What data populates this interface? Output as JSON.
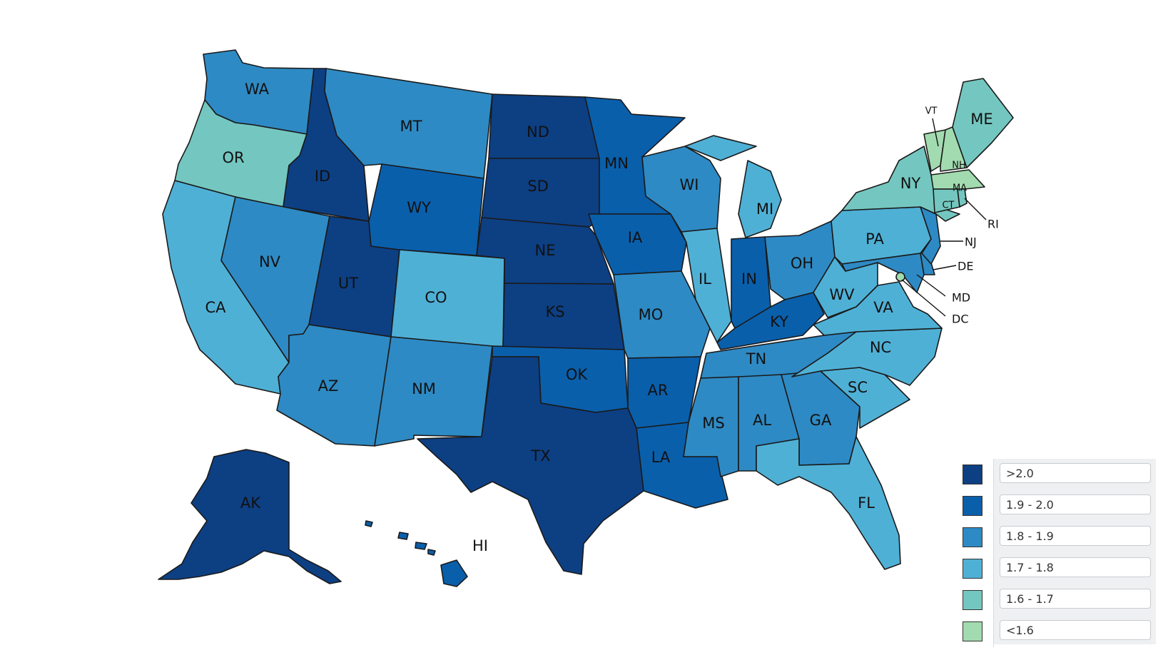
{
  "colors": {
    "c_gt20": "#0d3f83",
    "c_19_20": "#0a5fab",
    "c_18_19": "#2e8ac4",
    "c_17_18": "#4fb0d6",
    "c_16_17": "#74c7c0",
    "c_lt16": "#a2dbb0"
  },
  "legend": [
    {
      "label": ">2.0",
      "color": "#0d3f83"
    },
    {
      "label": "1.9 - 2.0",
      "color": "#0a5fab"
    },
    {
      "label": "1.8 - 1.9",
      "color": "#2e8ac4"
    },
    {
      "label": "1.7 - 1.8",
      "color": "#4fb0d6"
    },
    {
      "label": "1.6 - 1.7",
      "color": "#74c7c0"
    },
    {
      "label": "<1.6",
      "color": "#a2dbb0"
    }
  ],
  "states": {
    "WA": "WA",
    "OR": "OR",
    "CA": "CA",
    "ID": "ID",
    "NV": "NV",
    "MT": "MT",
    "WY": "WY",
    "UT": "UT",
    "AZ": "AZ",
    "CO": "CO",
    "NM": "NM",
    "ND": "ND",
    "SD": "SD",
    "NE": "NE",
    "KS": "KS",
    "OK": "OK",
    "TX": "TX",
    "MN": "MN",
    "IA": "IA",
    "MO": "MO",
    "AR": "AR",
    "LA": "LA",
    "WI": "WI",
    "IL": "IL",
    "MI": "MI",
    "IN": "IN",
    "OH": "OH",
    "KY": "KY",
    "TN": "TN",
    "MS": "MS",
    "AL": "AL",
    "GA": "GA",
    "FL": "FL",
    "SC": "SC",
    "NC": "NC",
    "VA": "VA",
    "WV": "WV",
    "PA": "PA",
    "NY": "NY",
    "VT": "VT",
    "NH": "NH",
    "ME": "ME",
    "MA": "MA",
    "CT": "CT",
    "RI": "RI",
    "NJ": "NJ",
    "DE": "DE",
    "MD": "MD",
    "DC": "DC",
    "AK": "AK",
    "HI": "HI"
  }
}
